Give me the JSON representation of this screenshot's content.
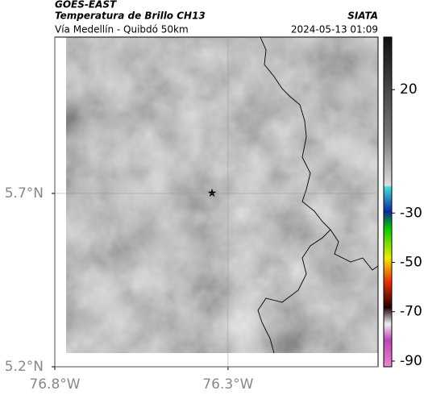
{
  "header": {
    "satellite": "GOES-EAST",
    "product": "Temperatura de Brillo CH13",
    "source": "SIATA",
    "route": "Vía Medellín - Quibdó 50km",
    "datetime": "2024-05-13 01:09"
  },
  "map": {
    "xlim": [
      -76.8,
      -75.867
    ],
    "ylim": [
      5.2,
      6.151
    ],
    "xticks": [
      {
        "value": -76.8,
        "label": "76.8°W"
      },
      {
        "value": -76.3,
        "label": "76.3°W"
      }
    ],
    "yticks": [
      {
        "value": 5.2,
        "label": "5.2°N"
      },
      {
        "value": 5.7,
        "label": "5.7°N"
      }
    ]
  },
  "colorbar": {
    "lim": [
      41.3,
      -92.3
    ],
    "ticks": [
      20,
      -30,
      -50,
      -70,
      -90
    ]
  }
}
